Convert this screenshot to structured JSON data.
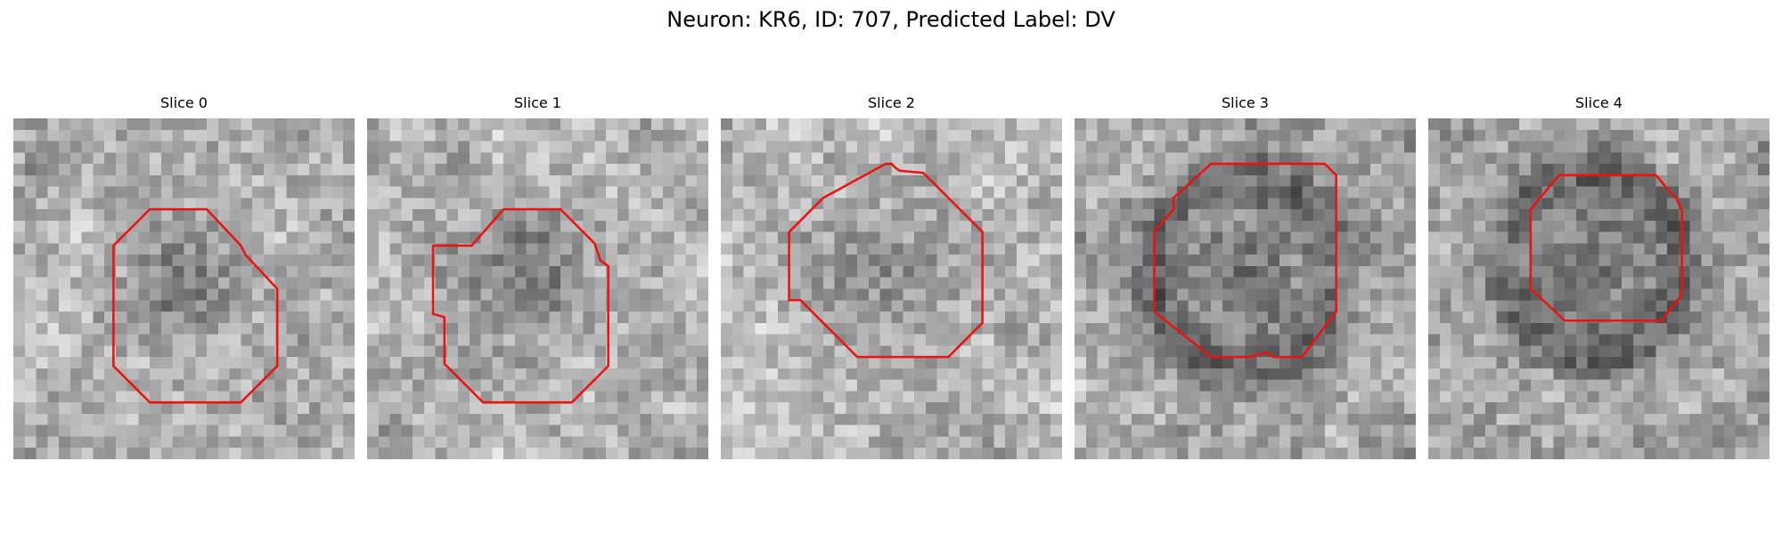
{
  "figure": {
    "title": "Neuron: KR6, ID: 707, Predicted Label: DV"
  },
  "panels": [
    {
      "title": "Slice 0",
      "image": "grayscale-microscopy-slice",
      "outline": "red-contour"
    },
    {
      "title": "Slice 1",
      "image": "grayscale-microscopy-slice",
      "outline": "red-contour"
    },
    {
      "title": "Slice 2",
      "image": "grayscale-microscopy-slice",
      "outline": "red-contour"
    },
    {
      "title": "Slice 3",
      "image": "grayscale-microscopy-slice",
      "outline": "red-contour"
    },
    {
      "title": "Slice 4",
      "image": "grayscale-microscopy-slice",
      "outline": "red-contour"
    }
  ],
  "colors": {
    "outline": "#ee1111",
    "background": "#ffffff"
  }
}
